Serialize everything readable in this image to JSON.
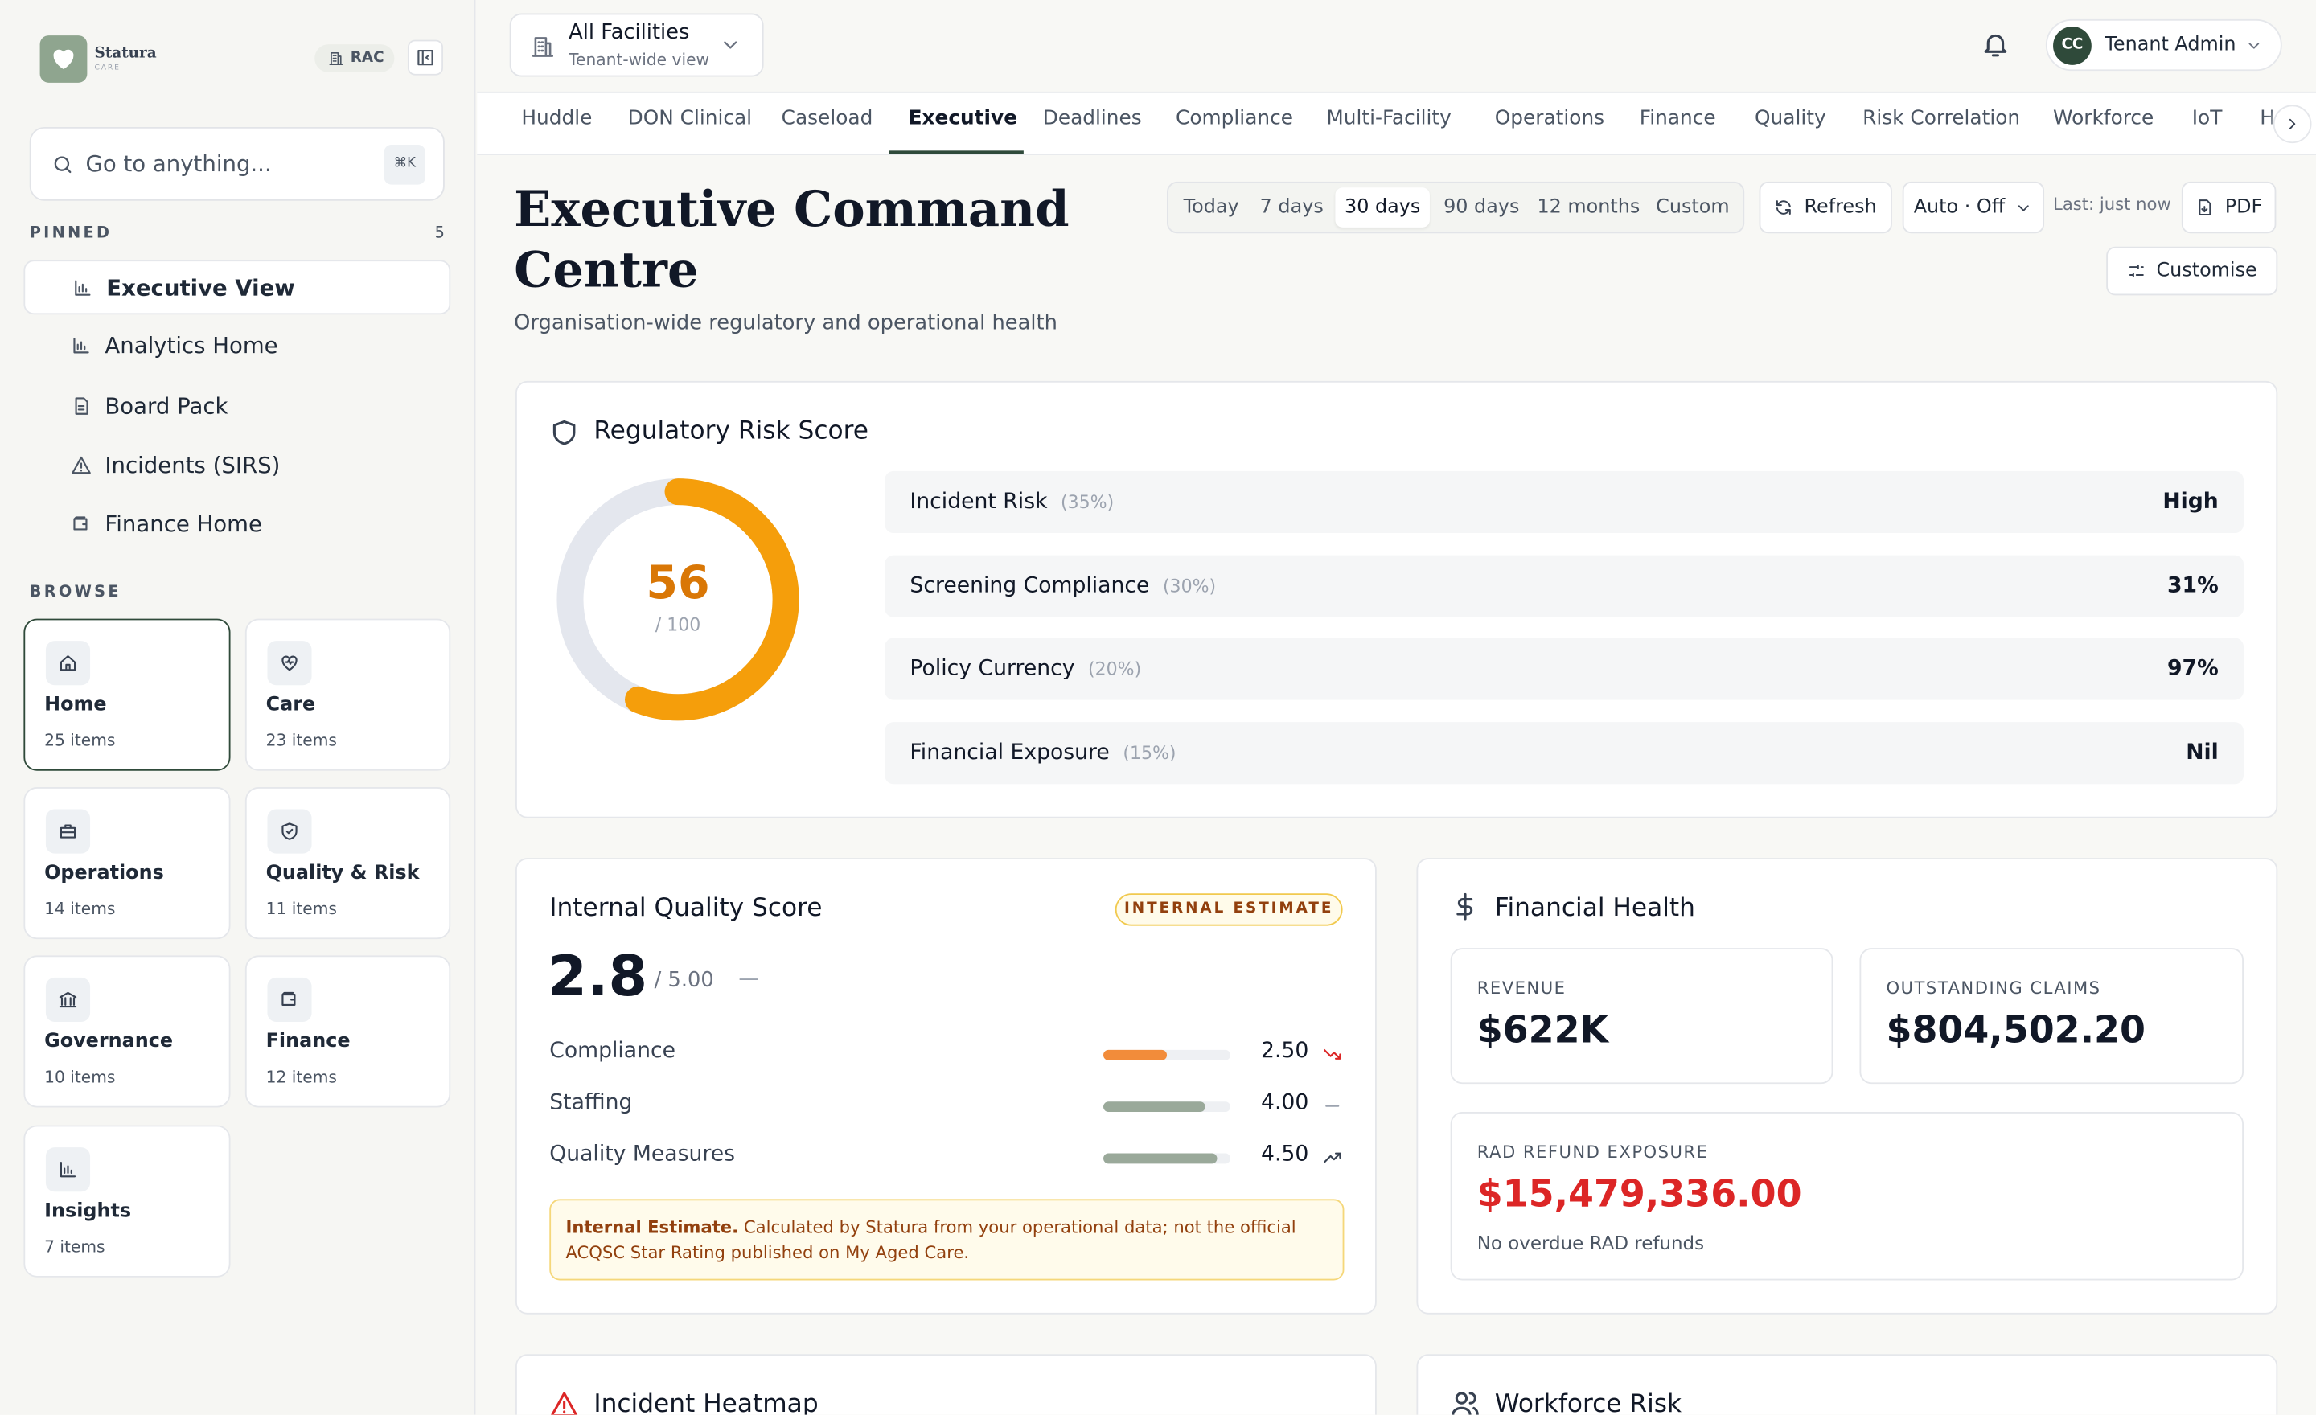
{
  "sidebar": {
    "brand": "Statura",
    "brand_sub": "CARE",
    "badge": "RAC",
    "search_placeholder": "Go to anything...",
    "search_shortcut": "⌘K",
    "pinned_label": "PINNED",
    "pinned_count": 5,
    "pinned": [
      "Executive View",
      "Analytics Home",
      "Board Pack",
      "Incidents (SIRS)",
      "Finance Home"
    ],
    "browse_label": "BROWSE",
    "browse": [
      {
        "name": "Home",
        "count": "25 items"
      },
      {
        "name": "Care",
        "count": "23 items"
      },
      {
        "name": "Operations",
        "count": "14 items"
      },
      {
        "name": "Quality & Risk",
        "count": "11 items"
      },
      {
        "name": "Governance",
        "count": "10 items"
      },
      {
        "name": "Finance",
        "count": "12 items"
      },
      {
        "name": "Insights",
        "count": "7 items"
      }
    ]
  },
  "topbar": {
    "facility": "All Facilities",
    "facility_sub": "Tenant-wide view",
    "user_initials": "CC",
    "user": "Tenant Admin"
  },
  "tabs": [
    "Huddle",
    "DON Clinical",
    "Caseload",
    "Executive",
    "Deadlines",
    "Compliance",
    "Multi-Facility",
    "Operations",
    "Finance",
    "Quality",
    "Risk Correlation",
    "Workforce",
    "IoT",
    "H"
  ],
  "active_tab": 3,
  "header": {
    "title": "Executive Command Centre",
    "subtitle": "Organisation-wide regulatory and operational health",
    "ranges": [
      "Today",
      "7 days",
      "30 days",
      "90 days",
      "12 months",
      "Custom"
    ],
    "active_range": 2,
    "refresh": "Refresh",
    "auto": "Auto · Off",
    "last": "Last: just now",
    "pdf": "PDF",
    "customise": "Customise"
  },
  "risk": {
    "title": "Regulatory Risk Score",
    "score": 56,
    "score_max": {
      "value": 100,
      "label": "/ 100"
    },
    "color": "#f59e0b",
    "rows": [
      {
        "label": "Incident Risk",
        "weight": "(35%)",
        "value": "High"
      },
      {
        "label": "Screening Compliance",
        "weight": "(30%)",
        "value": "31%"
      },
      {
        "label": "Policy Currency",
        "weight": "(20%)",
        "value": "97%"
      },
      {
        "label": "Financial Exposure",
        "weight": "(15%)",
        "value": "Nil"
      }
    ]
  },
  "quality": {
    "title": "Internal Quality Score",
    "badge": "INTERNAL ESTIMATE",
    "score": 2.8,
    "score_max": {
      "value": 5,
      "label": "/ 5.00"
    },
    "trend": "—",
    "rows": [
      {
        "label": "Compliance",
        "score": {
          "value": 2.5,
          "label": "2.50"
        },
        "color": "#f28c3a"
      },
      {
        "label": "Staffing",
        "score": {
          "value": 4,
          "label": "4.00"
        },
        "color": "#9aa99a"
      },
      {
        "label": "Quality Measures",
        "score": {
          "value": 4.5,
          "label": "4.50"
        },
        "color": "#9aa99a"
      }
    ],
    "note_lead": "Internal Estimate.",
    "note": "Calculated by Statura from your operational data; not the official ACQSC Star Rating published on My Aged Care."
  },
  "finance": {
    "title": "Financial Health",
    "tiles": [
      {
        "label": "REVENUE",
        "value": "$622K"
      },
      {
        "label": "OUTSTANDING CLAIMS",
        "value": "$804,502.20"
      },
      {
        "label": "RAD REFUND EXPOSURE",
        "value": "$15,479,336.00",
        "note": "No overdue RAD refunds"
      }
    ]
  },
  "bottom": [
    "Incident Heatmap",
    "Workforce Risk"
  ]
}
